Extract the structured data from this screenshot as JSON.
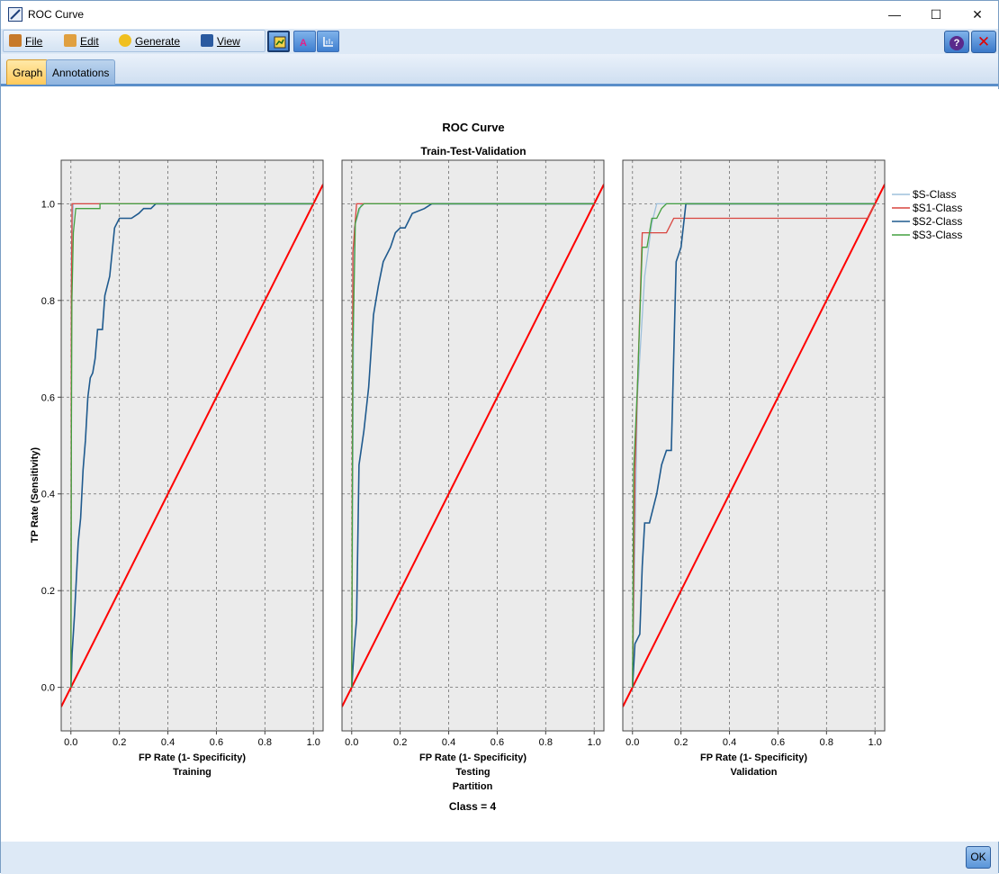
{
  "window": {
    "title": "ROC Curve",
    "minimize_label": "—",
    "maximize_label": "☐",
    "close_label": "✕"
  },
  "menu": {
    "items": [
      {
        "label": "File",
        "icon": "file-icon"
      },
      {
        "label": "Edit",
        "icon": "edit-icon"
      },
      {
        "label": "Generate",
        "icon": "generate-icon"
      },
      {
        "label": "View",
        "icon": "view-icon"
      }
    ],
    "toolbar_buttons": [
      "explore-mode-icon",
      "label-edit-icon",
      "graph-edit-icon"
    ],
    "help_label": "?",
    "close_label": "✕"
  },
  "tabs": [
    {
      "label": "Graph",
      "active": true
    },
    {
      "label": "Annotations",
      "active": false
    }
  ],
  "ok_label": "OK",
  "colors": {
    "panel_bg": "#ebebeb",
    "grid": "#6e6e6e",
    "diagonal": "#ff0000",
    "S": "#9ec0dc",
    "S1": "#d9453f",
    "S2": "#1f5a8e",
    "S3": "#44a040"
  },
  "chart_data": {
    "type": "line",
    "title": "ROC Curve",
    "subtitle": "Train-Test-Validation",
    "ylabel": "TP Rate (Sensitivity)",
    "xlabel": "FP Rate (1- Specificity)",
    "panel_group_label": "Partition",
    "footer": "Class = 4",
    "xlim": [
      -0.04,
      1.04
    ],
    "ylim": [
      -0.09,
      1.09
    ],
    "xticks": [
      "0.0",
      "0.2",
      "0.4",
      "0.6",
      "0.8",
      "1.0"
    ],
    "yticks": [
      "0.0",
      "0.2",
      "0.4",
      "0.6",
      "0.8",
      "1.0"
    ],
    "grid": true,
    "legend_position": "right",
    "legend": [
      "$S-Class",
      "$S1-Class",
      "$S2-Class",
      "$S3-Class"
    ],
    "diagonal": [
      [
        -0.04,
        -0.04
      ],
      [
        1.04,
        1.04
      ]
    ],
    "panels": [
      {
        "name": "Training",
        "series": [
          {
            "name": "$S-Class",
            "points": [
              [
                0,
                0
              ],
              [
                0.002,
                0.9
              ],
              [
                0.01,
                1.0
              ],
              [
                1.0,
                1.0
              ]
            ]
          },
          {
            "name": "$S1-Class",
            "points": [
              [
                0,
                0
              ],
              [
                0.002,
                0.8
              ],
              [
                0.005,
                1.0
              ],
              [
                1.0,
                1.0
              ]
            ]
          },
          {
            "name": "$S2-Class",
            "points": [
              [
                0,
                0
              ],
              [
                0.005,
                0.07
              ],
              [
                0.015,
                0.15
              ],
              [
                0.03,
                0.3
              ],
              [
                0.04,
                0.35
              ],
              [
                0.05,
                0.45
              ],
              [
                0.06,
                0.51
              ],
              [
                0.07,
                0.6
              ],
              [
                0.08,
                0.64
              ],
              [
                0.09,
                0.65
              ],
              [
                0.1,
                0.68
              ],
              [
                0.11,
                0.74
              ],
              [
                0.13,
                0.74
              ],
              [
                0.14,
                0.81
              ],
              [
                0.16,
                0.85
              ],
              [
                0.17,
                0.9
              ],
              [
                0.18,
                0.95
              ],
              [
                0.2,
                0.97
              ],
              [
                0.25,
                0.97
              ],
              [
                0.28,
                0.98
              ],
              [
                0.3,
                0.99
              ],
              [
                0.33,
                0.99
              ],
              [
                0.35,
                1.0
              ],
              [
                1.0,
                1.0
              ]
            ]
          },
          {
            "name": "$S3-Class",
            "points": [
              [
                0,
                0
              ],
              [
                0.002,
                0.5
              ],
              [
                0.004,
                0.8
              ],
              [
                0.01,
                0.94
              ],
              [
                0.02,
                0.99
              ],
              [
                0.12,
                0.99
              ],
              [
                0.12,
                1.0
              ],
              [
                1.0,
                1.0
              ]
            ]
          }
        ]
      },
      {
        "name": "Testing",
        "series": [
          {
            "name": "$S-Class",
            "points": [
              [
                0,
                0
              ],
              [
                0.01,
                0.95
              ],
              [
                0.04,
                1.0
              ],
              [
                1.0,
                1.0
              ]
            ]
          },
          {
            "name": "$S1-Class",
            "points": [
              [
                0,
                0
              ],
              [
                0.005,
                0.9
              ],
              [
                0.02,
                1.0
              ],
              [
                1.0,
                1.0
              ]
            ]
          },
          {
            "name": "$S2-Class",
            "points": [
              [
                0,
                0
              ],
              [
                0.01,
                0.08
              ],
              [
                0.02,
                0.14
              ],
              [
                0.03,
                0.46
              ],
              [
                0.05,
                0.53
              ],
              [
                0.07,
                0.62
              ],
              [
                0.09,
                0.77
              ],
              [
                0.11,
                0.83
              ],
              [
                0.13,
                0.88
              ],
              [
                0.16,
                0.91
              ],
              [
                0.18,
                0.94
              ],
              [
                0.2,
                0.95
              ],
              [
                0.22,
                0.95
              ],
              [
                0.25,
                0.98
              ],
              [
                0.3,
                0.99
              ],
              [
                0.33,
                1.0
              ],
              [
                1.0,
                1.0
              ]
            ]
          },
          {
            "name": "$S3-Class",
            "points": [
              [
                0,
                0
              ],
              [
                0.005,
                0.7
              ],
              [
                0.015,
                0.96
              ],
              [
                0.03,
                0.99
              ],
              [
                0.05,
                1.0
              ],
              [
                1.0,
                1.0
              ]
            ]
          }
        ]
      },
      {
        "name": "Validation",
        "series": [
          {
            "name": "$S-Class",
            "points": [
              [
                0,
                0
              ],
              [
                0.02,
                0.6
              ],
              [
                0.05,
                0.85
              ],
              [
                0.08,
                0.96
              ],
              [
                0.1,
                1.0
              ],
              [
                1.0,
                1.0
              ]
            ]
          },
          {
            "name": "$S1-Class",
            "points": [
              [
                0,
                0
              ],
              [
                0.01,
                0.45
              ],
              [
                0.04,
                0.94
              ],
              [
                0.08,
                0.94
              ],
              [
                0.14,
                0.94
              ],
              [
                0.17,
                0.97
              ],
              [
                0.97,
                0.97
              ],
              [
                1.0,
                1.0
              ]
            ]
          },
          {
            "name": "$S2-Class",
            "points": [
              [
                0,
                0
              ],
              [
                0.01,
                0.09
              ],
              [
                0.03,
                0.11
              ],
              [
                0.04,
                0.25
              ],
              [
                0.05,
                0.34
              ],
              [
                0.07,
                0.34
              ],
              [
                0.1,
                0.4
              ],
              [
                0.12,
                0.46
              ],
              [
                0.14,
                0.49
              ],
              [
                0.16,
                0.49
              ],
              [
                0.18,
                0.88
              ],
              [
                0.2,
                0.91
              ],
              [
                0.22,
                1.0
              ],
              [
                1.0,
                1.0
              ]
            ]
          },
          {
            "name": "$S3-Class",
            "points": [
              [
                0,
                0
              ],
              [
                0.005,
                0.45
              ],
              [
                0.02,
                0.62
              ],
              [
                0.04,
                0.91
              ],
              [
                0.06,
                0.91
              ],
              [
                0.08,
                0.97
              ],
              [
                0.1,
                0.97
              ],
              [
                0.12,
                0.99
              ],
              [
                0.14,
                1.0
              ],
              [
                1.0,
                1.0
              ]
            ]
          }
        ]
      }
    ]
  }
}
